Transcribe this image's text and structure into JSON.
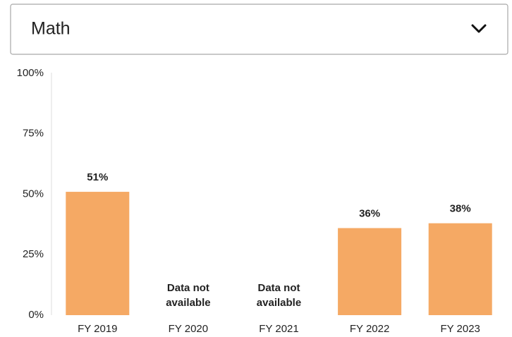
{
  "dropdown": {
    "selected": "Math"
  },
  "chart_data": {
    "type": "bar",
    "categories": [
      "FY 2019",
      "FY 2020",
      "FY 2021",
      "FY 2022",
      "FY 2023"
    ],
    "values": [
      51,
      null,
      null,
      36,
      38
    ],
    "value_labels": [
      "51%",
      "Data not available",
      "Data not available",
      "36%",
      "38%"
    ],
    "color": "#f5a964",
    "ylim": [
      0,
      100
    ],
    "yticks": [
      {
        "value": 0,
        "label": "0%"
      },
      {
        "value": 25,
        "label": "25%"
      },
      {
        "value": 50,
        "label": "50%"
      },
      {
        "value": 75,
        "label": "75%"
      },
      {
        "value": 100,
        "label": "100%"
      }
    ],
    "grid": false
  }
}
